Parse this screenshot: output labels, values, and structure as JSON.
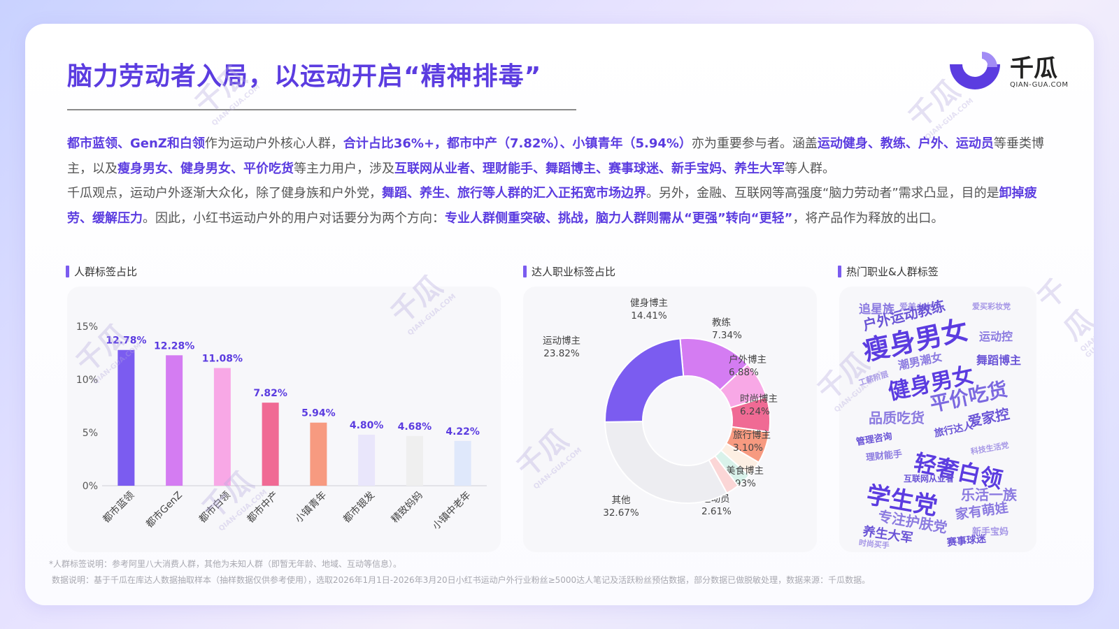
{
  "header": {
    "title": "脑力劳动者入局，以运动开启“精神排毒”",
    "logo_text": "千瓜",
    "logo_sub": "QIAN-GUA.COM"
  },
  "intro": {
    "p1": [
      {
        "t": "都市蓝领、GenZ和白领",
        "h": true
      },
      {
        "t": "作为运动户外核心人群，",
        "h": false
      },
      {
        "t": "合计占比36%+，都市中产（7.82%）、小镇青年（5.94%）",
        "h": true
      },
      {
        "t": "亦为重要参与者。涵盖",
        "h": false
      },
      {
        "t": "运动健身、教练、户外、运动员",
        "h": true
      },
      {
        "t": "等垂类博主，以及",
        "h": false
      },
      {
        "t": "瘦身男女、健身男女、平价吃货",
        "h": true
      },
      {
        "t": "等主力用户，涉及",
        "h": false
      },
      {
        "t": "互联网从业者、理财能手、舞蹈博主、赛事球迷、新手宝妈、养生大军",
        "h": true
      },
      {
        "t": "等人群。",
        "h": false
      }
    ],
    "p2": [
      {
        "t": "千瓜观点，运动户外逐渐大众化，除了健身族和户外党，",
        "h": false
      },
      {
        "t": "舞蹈、养生、旅行等人群的汇入正拓宽市场边界",
        "h": true
      },
      {
        "t": "。另外，金融、互联网等高强度“脑力劳动者”需求凸显，目的是",
        "h": false
      },
      {
        "t": "卸掉疲劳、缓解压力",
        "h": true
      },
      {
        "t": "。因此，小红书运动户外的用户对话要分为两个方向：",
        "h": false
      },
      {
        "t": "专业人群侧重突破、挑战，脑力人群则需从“更强”转向“更轻”",
        "h": true
      },
      {
        "t": "，将产品作为释放的出口。",
        "h": false
      }
    ]
  },
  "sections": {
    "bar_title": "人群标签占比",
    "donut_title": "达人职业标签占比",
    "cloud_title": "热门职业&人群标签"
  },
  "chart_data": [
    {
      "type": "bar",
      "title": "人群标签占比",
      "categories": [
        "都市蓝领",
        "都市GenZ",
        "都市白领",
        "都市中产",
        "小镇青年",
        "都市银发",
        "精致妈妈",
        "小镇中老年"
      ],
      "values": [
        12.78,
        12.28,
        11.08,
        7.82,
        5.94,
        4.8,
        4.68,
        4.22
      ],
      "labels": [
        "12.78%",
        "12.28%",
        "11.08%",
        "7.82%",
        "5.94%",
        "4.80%",
        "4.68%",
        "4.22%"
      ],
      "colors": [
        "#7b5cf0",
        "#d47cf2",
        "#f8a8e6",
        "#f06a94",
        "#f79a80",
        "#e9e6fb",
        "#efefef",
        "#dfe8fb"
      ],
      "yticks": [
        "0%",
        "5%",
        "10%",
        "15%"
      ],
      "ylim": [
        0,
        15
      ]
    },
    {
      "type": "pie",
      "title": "达人职业标签占比",
      "slices": [
        {
          "label": "健身博主",
          "value": 14.41,
          "text": "14.41%",
          "color": "#d47cf2"
        },
        {
          "label": "教练",
          "value": 7.34,
          "text": "7.34%",
          "color": "#f8a8e6"
        },
        {
          "label": "户外博主",
          "value": 6.88,
          "text": "6.88%",
          "color": "#f06a94"
        },
        {
          "label": "时尚博主",
          "value": 6.24,
          "text": "6.24%",
          "color": "#f79a80"
        },
        {
          "label": "旅行博主",
          "value": 3.1,
          "text": "3.10%",
          "color": "#fdefe3"
        },
        {
          "label": "美食博主",
          "value": 2.93,
          "text": "2.93%",
          "color": "#d9f2ea"
        },
        {
          "label": "运动员",
          "value": 2.61,
          "text": "2.61%",
          "color": "#fbd6d6"
        },
        {
          "label": "其他",
          "value": 32.67,
          "text": "32.67%",
          "color": "#ededf1"
        },
        {
          "label": "运动博主",
          "value": 23.82,
          "text": "23.82%",
          "color": "#7b5cf0"
        }
      ]
    }
  ],
  "wordcloud": [
    {
      "t": "追星族",
      "c": "#8b7ae0"
    },
    {
      "t": "爱美少女",
      "c": "#a596e6"
    },
    {
      "t": "爱买彩妆党",
      "c": "#a596e6"
    },
    {
      "t": "户外运动教练",
      "c": "#6a54d6"
    },
    {
      "t": "运动控",
      "c": "#8b7ae0"
    },
    {
      "t": "瘦身男女",
      "c": "#5b3ce0"
    },
    {
      "t": "舞蹈博主",
      "c": "#6a54d6"
    },
    {
      "t": "工薪阶层",
      "c": "#a596e6"
    },
    {
      "t": "潮男潮女",
      "c": "#8b7ae0"
    },
    {
      "t": "健身男女",
      "c": "#5b3ce0"
    },
    {
      "t": "平价吃货",
      "c": "#7b68e0"
    },
    {
      "t": "品质吃货",
      "c": "#8b7ae0"
    },
    {
      "t": "爱家控",
      "c": "#6a54d6"
    },
    {
      "t": "旅行达人",
      "c": "#6a54d6"
    },
    {
      "t": "管理咨询",
      "c": "#6a54d6"
    },
    {
      "t": "科技生活党",
      "c": "#a596e6"
    },
    {
      "t": "理财能手",
      "c": "#8b7ae0"
    },
    {
      "t": "轻奢白领",
      "c": "#5b3ce0"
    },
    {
      "t": "互联网从业者",
      "c": "#6a54d6"
    },
    {
      "t": "学生党",
      "c": "#5b3ce0"
    },
    {
      "t": "乐活一族",
      "c": "#8b7ae0"
    },
    {
      "t": "专注护肤党",
      "c": "#8b7ae0"
    },
    {
      "t": "家有萌娃",
      "c": "#8b7ae0"
    },
    {
      "t": "养生大军",
      "c": "#6a54d6"
    },
    {
      "t": "新手宝妈",
      "c": "#a596e6"
    },
    {
      "t": "赛事球迷",
      "c": "#6a54d6"
    },
    {
      "t": "时尚买手",
      "c": "#a596e6"
    }
  ],
  "footnotes": {
    "note1": "*人群标签说明：参考阿里八大消费人群，其他为未知人群（即暂无年龄、地域、互动等信息）。",
    "note2": "数据说明：基于千瓜在库达人数据抽取样本（抽样数据仅供参考使用），选取2026年1月1日-2026年3月20日小红书运动户外行业粉丝≥5000达人笔记及活跃粉丝预估数据，部分数据已做脱敏处理，数据来源：千瓜数据。"
  },
  "watermark": {
    "text": "千瓜",
    "sub": "QIAN-GUA.COM"
  }
}
